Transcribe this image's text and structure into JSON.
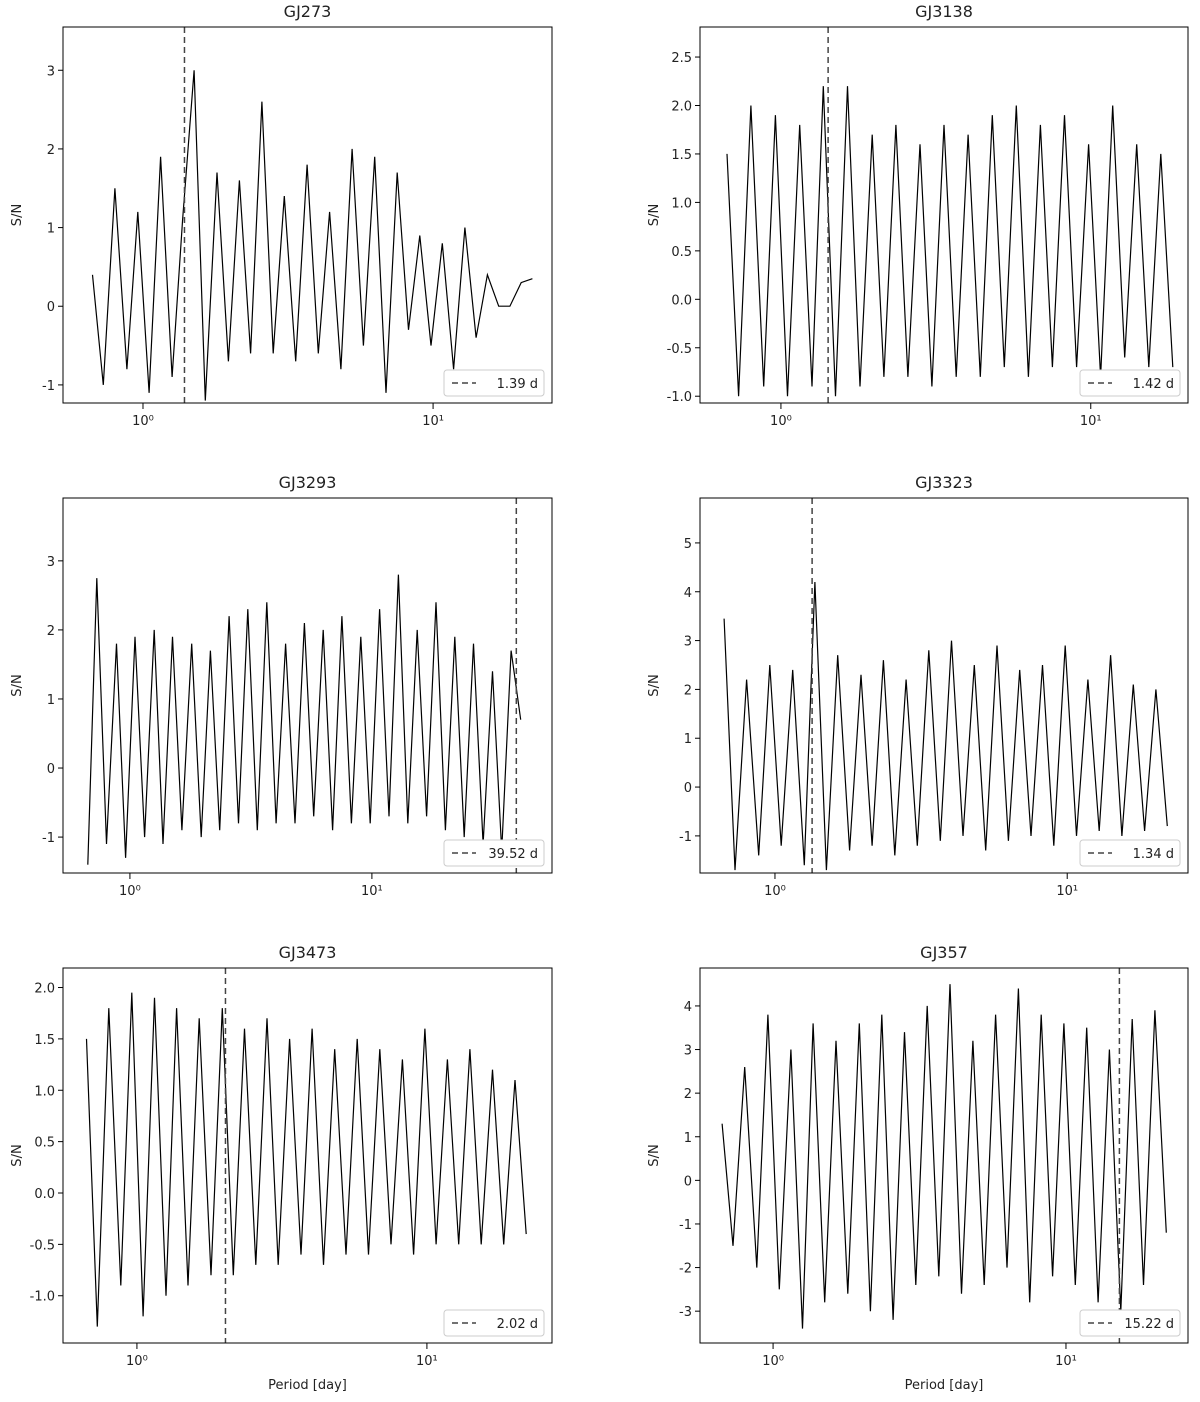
{
  "chart_data": [
    {
      "type": "line",
      "title": "GJ273",
      "ylabel": "S/N",
      "xscale": "log",
      "color": "#000000",
      "xlim": [
        0.53,
        25.7
      ],
      "ylim": [
        -1.23,
        3.55
      ],
      "xticks": [
        {
          "value": 1,
          "label": "10⁰"
        },
        {
          "value": 10,
          "label": "10¹"
        }
      ],
      "yticks": [
        -1,
        0,
        1,
        2,
        3
      ],
      "x": [
        0.67,
        0.73,
        0.8,
        0.88,
        0.96,
        1.05,
        1.15,
        1.26,
        1.37,
        1.5,
        1.64,
        1.8,
        1.97,
        2.15,
        2.35,
        2.57,
        2.81,
        3.07,
        3.36,
        3.68,
        4.02,
        4.4,
        4.81,
        5.26,
        5.75,
        6.29,
        6.88,
        7.52,
        8.23,
        9.0,
        9.84,
        10.76,
        11.77,
        12.87,
        14.07,
        15.39,
        16.83,
        18.4,
        20.12,
        22.0
      ],
      "values": [
        0.4,
        -1.0,
        1.5,
        -0.8,
        1.2,
        -1.1,
        1.9,
        -0.9,
        1.1,
        3.0,
        -1.2,
        1.7,
        -0.7,
        1.6,
        -0.6,
        2.6,
        -0.6,
        1.4,
        -0.7,
        1.8,
        -0.6,
        1.2,
        -0.8,
        2.0,
        -0.5,
        1.9,
        -1.1,
        1.7,
        -0.3,
        0.9,
        -0.5,
        0.8,
        -0.8,
        1.0,
        -0.4,
        0.4,
        0.0,
        0.0,
        0.3,
        0.35
      ],
      "vline": {
        "value": 1.39,
        "label": "1.39 d"
      }
    },
    {
      "type": "line",
      "title": "GJ3138",
      "ylabel": "S/N",
      "xscale": "log",
      "color": "#000000",
      "xlim": [
        0.548,
        20.6
      ],
      "ylim": [
        -1.07,
        2.81
      ],
      "xticks": [
        {
          "value": 1,
          "label": "10⁰"
        },
        {
          "value": 10,
          "label": "10¹"
        }
      ],
      "yticks": [
        {
          "value": -1,
          "label": "-1.0"
        },
        -0.5,
        {
          "value": 0,
          "label": "0.0"
        },
        0.5,
        {
          "value": 1,
          "label": "1.0"
        },
        1.5,
        {
          "value": 2,
          "label": "2.0"
        },
        2.5
      ],
      "x": [
        0.67,
        0.73,
        0.8,
        0.88,
        0.96,
        1.05,
        1.15,
        1.26,
        1.37,
        1.5,
        1.64,
        1.8,
        1.97,
        2.15,
        2.35,
        2.57,
        2.81,
        3.07,
        3.36,
        3.68,
        4.02,
        4.4,
        4.81,
        5.26,
        5.75,
        6.29,
        6.88,
        7.52,
        8.23,
        9.0,
        9.84,
        10.76,
        11.77,
        12.87,
        14.07,
        15.39,
        16.83,
        18.4
      ],
      "values": [
        1.5,
        -1.0,
        2.0,
        -0.9,
        1.9,
        -1.0,
        1.8,
        -0.9,
        2.2,
        -1.0,
        2.2,
        -0.9,
        1.7,
        -0.8,
        1.8,
        -0.8,
        1.6,
        -0.9,
        1.8,
        -0.8,
        1.7,
        -0.8,
        1.9,
        -0.7,
        2.0,
        -0.8,
        1.8,
        -0.7,
        1.9,
        -0.7,
        1.6,
        -0.8,
        2.0,
        -0.6,
        1.6,
        -0.7,
        1.5,
        -0.7
      ],
      "vline": {
        "value": 1.42,
        "label": "1.42 d"
      }
    },
    {
      "type": "line",
      "title": "GJ3293",
      "ylabel": "S/N",
      "xscale": "log",
      "color": "#000000",
      "xlim": [
        0.529,
        55.5
      ],
      "ylim": [
        -1.52,
        3.91
      ],
      "xticks": [
        {
          "value": 1,
          "label": "10⁰"
        },
        {
          "value": 10,
          "label": "10¹"
        }
      ],
      "yticks": [
        -1,
        0,
        1,
        2,
        3
      ],
      "x": [
        0.67,
        0.73,
        0.8,
        0.88,
        0.96,
        1.05,
        1.15,
        1.26,
        1.37,
        1.5,
        1.64,
        1.8,
        1.97,
        2.15,
        2.35,
        2.57,
        2.81,
        3.07,
        3.36,
        3.68,
        4.02,
        4.4,
        4.81,
        5.26,
        5.75,
        6.29,
        6.88,
        7.52,
        8.23,
        9.0,
        9.84,
        10.76,
        11.77,
        12.87,
        14.07,
        15.39,
        16.83,
        18.4,
        20.12,
        22.0,
        24.06,
        26.3,
        28.8,
        31.5,
        34.4,
        37.6,
        41.2
      ],
      "values": [
        -1.4,
        2.75,
        -1.1,
        1.8,
        -1.3,
        1.9,
        -1.0,
        2.0,
        -1.1,
        1.9,
        -0.9,
        1.8,
        -1.0,
        1.7,
        -0.9,
        2.2,
        -0.8,
        2.3,
        -0.9,
        2.4,
        -0.8,
        1.8,
        -0.8,
        2.1,
        -0.7,
        2.0,
        -0.9,
        2.2,
        -0.8,
        1.9,
        -0.8,
        2.3,
        -0.7,
        2.8,
        -0.8,
        2.0,
        -0.7,
        2.4,
        -0.9,
        1.9,
        -1.0,
        1.8,
        -1.1,
        1.4,
        -1.2,
        1.7,
        0.7
      ],
      "vline": {
        "value": 39.52,
        "label": "39.52 d"
      }
    },
    {
      "type": "line",
      "title": "GJ3323",
      "ylabel": "S/N",
      "xscale": "log",
      "color": "#000000",
      "xlim": [
        0.554,
        25.9
      ],
      "ylim": [
        -1.76,
        5.92
      ],
      "xticks": [
        {
          "value": 1,
          "label": "10⁰"
        },
        {
          "value": 10,
          "label": "10¹"
        }
      ],
      "yticks": [
        -1,
        0,
        1,
        2,
        3,
        4,
        5
      ],
      "x": [
        0.67,
        0.73,
        0.8,
        0.88,
        0.96,
        1.05,
        1.15,
        1.26,
        1.37,
        1.5,
        1.64,
        1.8,
        1.97,
        2.15,
        2.35,
        2.57,
        2.81,
        3.07,
        3.36,
        3.68,
        4.02,
        4.4,
        4.81,
        5.26,
        5.75,
        6.29,
        6.88,
        7.52,
        8.23,
        9.0,
        9.84,
        10.76,
        11.77,
        12.87,
        14.07,
        15.39,
        16.83,
        18.4,
        20.12,
        22.0
      ],
      "values": [
        3.45,
        -1.7,
        2.2,
        -1.4,
        2.5,
        -1.2,
        2.4,
        -1.6,
        4.2,
        -1.7,
        2.7,
        -1.3,
        2.3,
        -1.2,
        2.6,
        -1.4,
        2.2,
        -1.2,
        2.8,
        -1.1,
        3.0,
        -1.0,
        2.5,
        -1.3,
        2.9,
        -1.1,
        2.4,
        -1.0,
        2.5,
        -1.2,
        2.9,
        -1.0,
        2.2,
        -0.9,
        2.7,
        -1.0,
        2.1,
        -0.9,
        2.0,
        -0.8
      ],
      "vline": {
        "value": 1.34,
        "label": "1.34 d"
      }
    },
    {
      "type": "line",
      "title": "GJ3473",
      "ylabel": "S/N",
      "xlabel": "Period [day]",
      "xscale": "log",
      "color": "#000000",
      "xlim": [
        0.556,
        27.0
      ],
      "ylim": [
        -1.46,
        2.19
      ],
      "xticks": [
        {
          "value": 1,
          "label": "10⁰"
        },
        {
          "value": 10,
          "label": "10¹"
        }
      ],
      "yticks": [
        {
          "value": -1,
          "label": "-1.0"
        },
        -0.5,
        {
          "value": 0,
          "label": "0.0"
        },
        0.5,
        {
          "value": 1,
          "label": "1.0"
        },
        1.5,
        {
          "value": 2,
          "label": "2.0"
        }
      ],
      "x": [
        0.67,
        0.73,
        0.8,
        0.88,
        0.96,
        1.05,
        1.15,
        1.26,
        1.37,
        1.5,
        1.64,
        1.8,
        1.97,
        2.15,
        2.35,
        2.57,
        2.81,
        3.07,
        3.36,
        3.68,
        4.02,
        4.4,
        4.81,
        5.26,
        5.75,
        6.29,
        6.88,
        7.52,
        8.23,
        9.0,
        9.84,
        10.76,
        11.77,
        12.87,
        14.07,
        15.39,
        16.83,
        18.4,
        20.12,
        22.0
      ],
      "values": [
        1.5,
        -1.3,
        1.8,
        -0.9,
        1.95,
        -1.2,
        1.9,
        -1.0,
        1.8,
        -0.9,
        1.7,
        -0.8,
        1.8,
        -0.8,
        1.6,
        -0.7,
        1.7,
        -0.7,
        1.5,
        -0.6,
        1.6,
        -0.7,
        1.4,
        -0.6,
        1.5,
        -0.6,
        1.4,
        -0.5,
        1.3,
        -0.6,
        1.6,
        -0.5,
        1.3,
        -0.5,
        1.4,
        -0.5,
        1.2,
        -0.5,
        1.1,
        -0.4
      ],
      "vline": {
        "value": 2.02,
        "label": "2.02 d"
      }
    },
    {
      "type": "line",
      "title": "GJ357",
      "ylabel": "S/N",
      "xlabel": "Period [day]",
      "xscale": "log",
      "color": "#000000",
      "xlim": [
        0.563,
        26.1
      ],
      "ylim": [
        -3.73,
        4.87
      ],
      "xticks": [
        {
          "value": 1,
          "label": "10⁰"
        },
        {
          "value": 10,
          "label": "10¹"
        }
      ],
      "yticks": [
        -3,
        -2,
        -1,
        0,
        1,
        2,
        3,
        4
      ],
      "x": [
        0.67,
        0.73,
        0.8,
        0.88,
        0.96,
        1.05,
        1.15,
        1.26,
        1.37,
        1.5,
        1.64,
        1.8,
        1.97,
        2.15,
        2.35,
        2.57,
        2.81,
        3.07,
        3.36,
        3.68,
        4.02,
        4.4,
        4.81,
        5.26,
        5.75,
        6.29,
        6.88,
        7.52,
        8.23,
        9.0,
        9.84,
        10.76,
        11.77,
        12.87,
        14.07,
        15.39,
        16.83,
        18.4,
        20.12,
        22.0
      ],
      "values": [
        1.3,
        -1.5,
        2.6,
        -2.0,
        3.8,
        -2.5,
        3.0,
        -3.4,
        3.6,
        -2.8,
        3.2,
        -2.6,
        3.6,
        -3.0,
        3.8,
        -3.2,
        3.4,
        -2.4,
        4.0,
        -2.2,
        4.5,
        -2.6,
        3.2,
        -2.4,
        3.8,
        -2.0,
        4.4,
        -2.8,
        3.8,
        -2.2,
        3.6,
        -2.4,
        3.5,
        -2.8,
        3.0,
        -3.0,
        3.7,
        -2.4,
        3.9,
        -1.2
      ],
      "vline": {
        "value": 15.22,
        "label": "15.22 d"
      }
    }
  ]
}
